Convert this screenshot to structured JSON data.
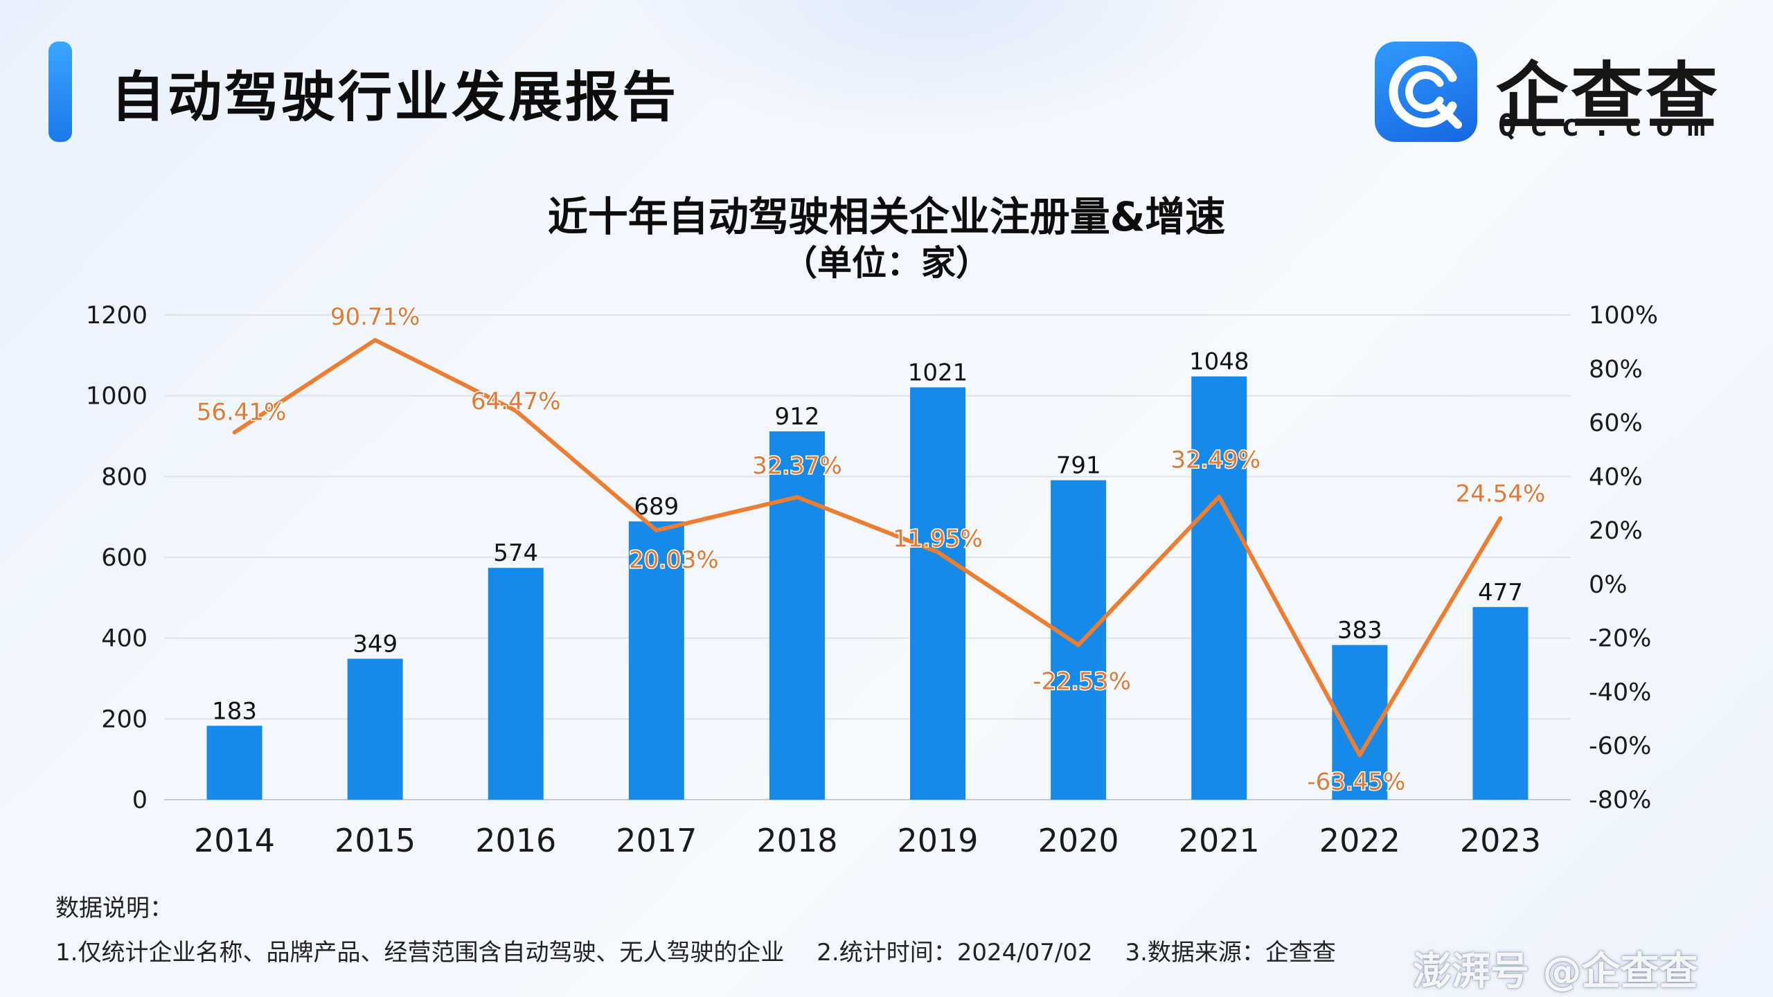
{
  "header": {
    "title": "自动驾驶行业发展报告",
    "logo_name": "企查查",
    "logo_domain": "Qcc.com"
  },
  "chart_data": {
    "type": "bar+line",
    "title": "近十年自动驾驶相关企业注册量&增速",
    "subtitle": "（单位：家）",
    "categories": [
      "2014",
      "2015",
      "2016",
      "2017",
      "2018",
      "2019",
      "2020",
      "2021",
      "2022",
      "2023"
    ],
    "series": [
      {
        "name": "注册量",
        "type": "bar",
        "axis": "left",
        "color": "#1789e8",
        "values": [
          183,
          349,
          574,
          689,
          912,
          1021,
          791,
          1048,
          383,
          477
        ],
        "labels": [
          "183",
          "349",
          "574",
          "689",
          "912",
          "1021",
          "791",
          "1048",
          "383",
          "477"
        ]
      },
      {
        "name": "增速",
        "type": "line",
        "axis": "right",
        "color": "#ed7d31",
        "values": [
          56.41,
          90.71,
          64.47,
          20.03,
          32.37,
          11.95,
          -22.53,
          32.49,
          -63.45,
          24.54
        ],
        "labels": [
          "56.41%",
          "90.71%",
          "64.47%",
          "20.03%",
          "32.37%",
          "11.95%",
          "-22.53%",
          "32.49%",
          "-63.45%",
          "24.54%"
        ]
      }
    ],
    "y_left": {
      "min": 0,
      "max": 1200,
      "ticks": [
        "0",
        "200",
        "400",
        "600",
        "800",
        "1000",
        "1200"
      ]
    },
    "y_right": {
      "min": -80,
      "max": 100,
      "ticks": [
        "-80%",
        "-60%",
        "-40%",
        "-20%",
        "0%",
        "20%",
        "40%",
        "60%",
        "80%",
        "100%"
      ]
    },
    "grid": true
  },
  "notes": {
    "heading": "数据说明：",
    "items": [
      "1.仅统计企业名称、品牌产品、经营范围含自动驾驶、无人驾驶的企业",
      "2.统计时间：2024/07/02",
      "3.数据来源：企查查"
    ]
  },
  "watermark": "澎湃号 @企查查"
}
